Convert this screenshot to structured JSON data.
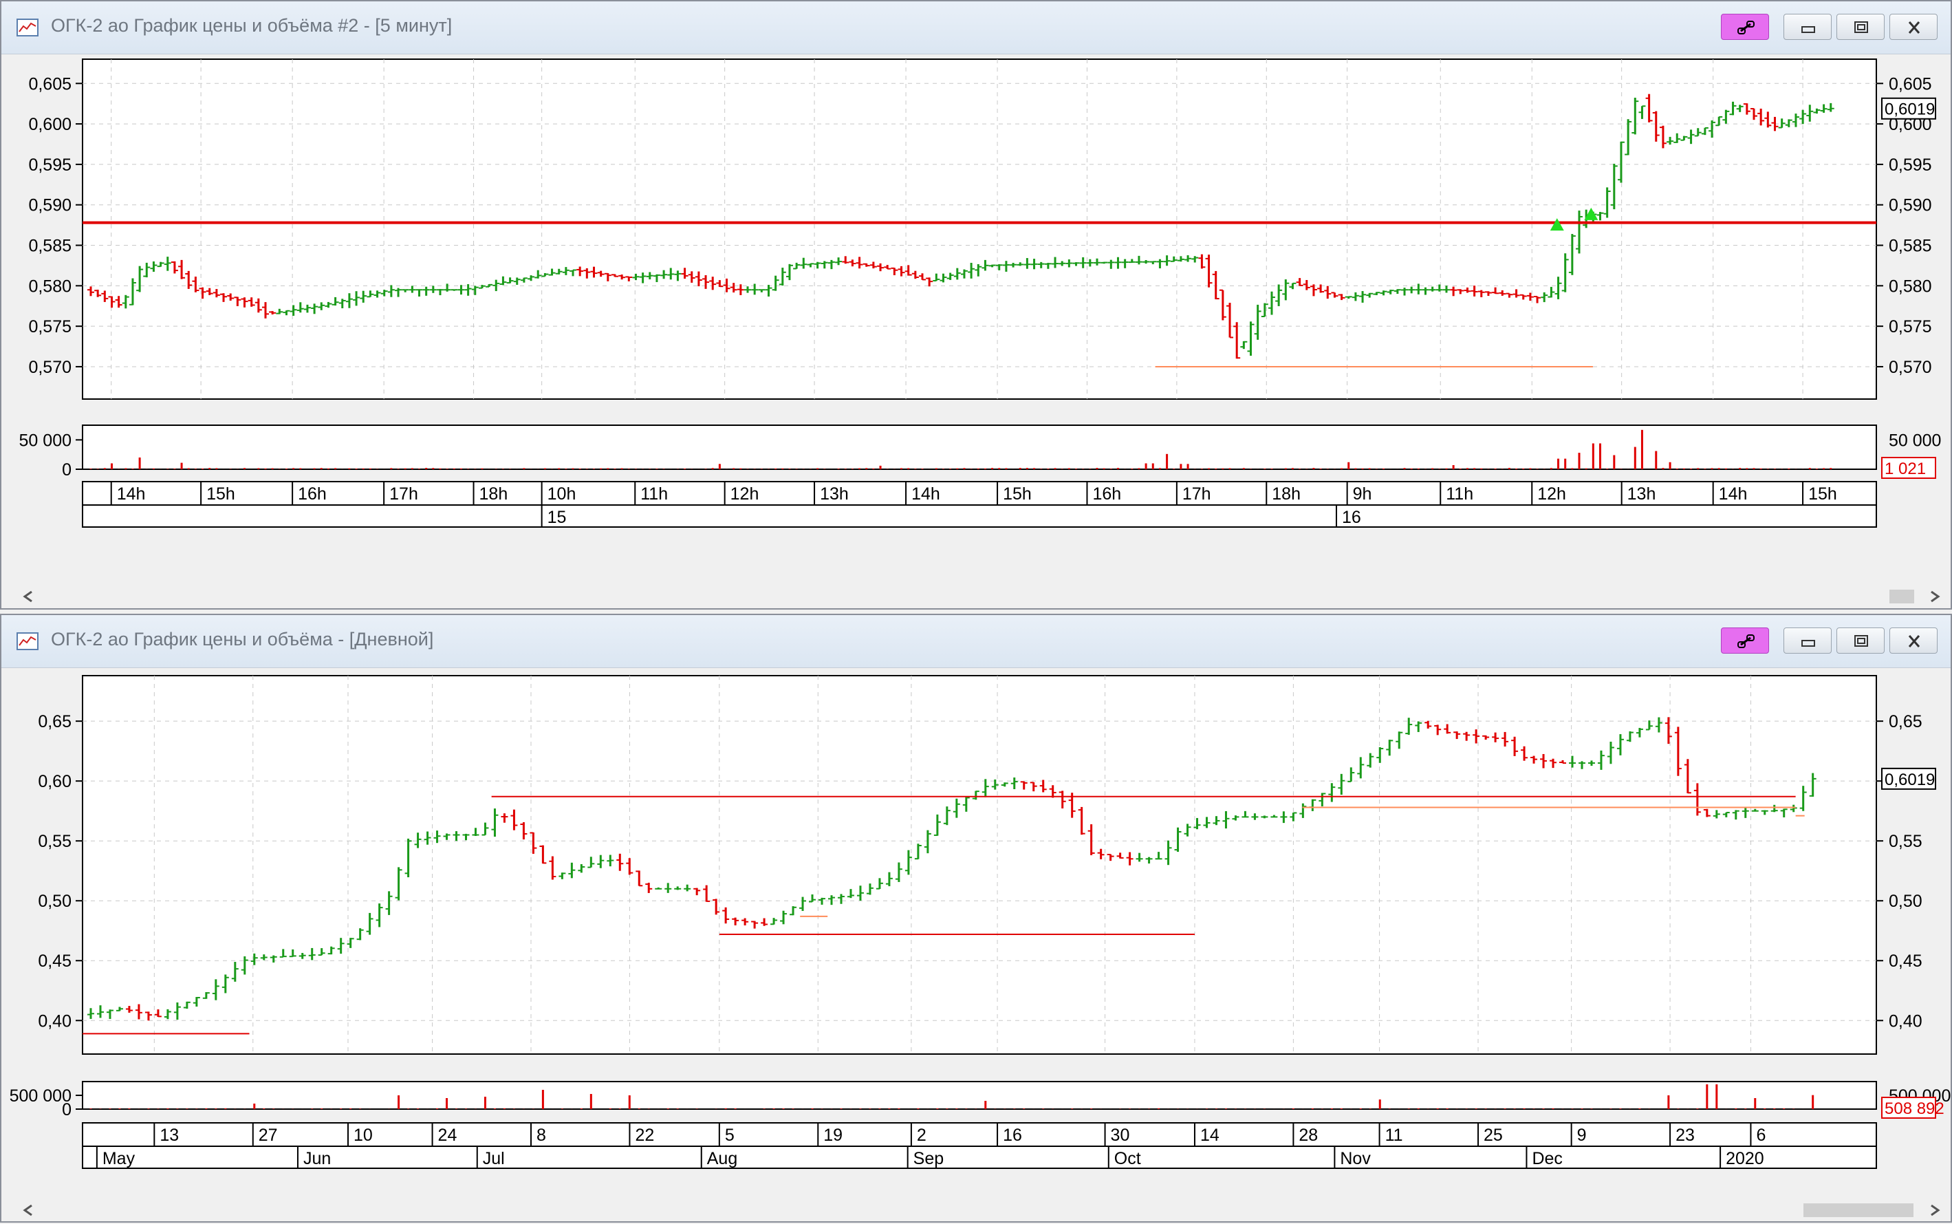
{
  "colors": {
    "up": "#1a9a1a",
    "down": "#e00000",
    "level": "#e00000",
    "level_thin": "#ff8c5a",
    "grid": "#c8c8c8",
    "volume": "#e00000",
    "arrow": "#22dd22",
    "price_box": "#000000",
    "volume_box": "#e00000"
  },
  "icons": [
    "chart-icon",
    "link-icon",
    "minimize-icon",
    "restore-icon",
    "close-icon",
    "scroll-left-icon",
    "scroll-right-icon"
  ],
  "windows": [
    {
      "title": "ОГК-2 ао График цены и объёма #2 - [5 минут]",
      "price_box_label": "0,6019",
      "volume_box_label": "1 021",
      "chart_data": {
        "type": "ohlc",
        "interval": "5 минут",
        "ylim": [
          0.566,
          0.608
        ],
        "yticks": [
          0.57,
          0.575,
          0.58,
          0.585,
          0.59,
          0.595,
          0.6,
          0.605
        ],
        "ytick_labels": [
          "0,570",
          "0,575",
          "0,580",
          "0,585",
          "0,590",
          "0,595",
          "0,600",
          "0,605"
        ],
        "last_price": 0.6019,
        "horizontal_levels": [
          {
            "price": 0.5878,
            "style": "thick",
            "from": 0,
            "to": 1
          },
          {
            "price": 0.57,
            "style": "thin",
            "from": 0.598,
            "to": 0.842
          }
        ],
        "price_path": [
          [
            0.0,
            0.5795
          ],
          [
            0.02,
            0.5775
          ],
          [
            0.03,
            0.582
          ],
          [
            0.045,
            0.583
          ],
          [
            0.06,
            0.5795
          ],
          [
            0.09,
            0.578
          ],
          [
            0.1,
            0.5765
          ],
          [
            0.13,
            0.5775
          ],
          [
            0.17,
            0.5795
          ],
          [
            0.21,
            0.5795
          ],
          [
            0.27,
            0.582
          ],
          [
            0.3,
            0.581
          ],
          [
            0.33,
            0.5815
          ],
          [
            0.36,
            0.5795
          ],
          [
            0.38,
            0.5795
          ],
          [
            0.392,
            0.5825
          ],
          [
            0.42,
            0.583
          ],
          [
            0.45,
            0.582
          ],
          [
            0.47,
            0.5805
          ],
          [
            0.5,
            0.5825
          ],
          [
            0.55,
            0.5828
          ],
          [
            0.6,
            0.583
          ],
          [
            0.62,
            0.5835
          ],
          [
            0.632,
            0.5775
          ],
          [
            0.642,
            0.571
          ],
          [
            0.652,
            0.5765
          ],
          [
            0.67,
            0.5805
          ],
          [
            0.7,
            0.5785
          ],
          [
            0.73,
            0.5795
          ],
          [
            0.76,
            0.5795
          ],
          [
            0.79,
            0.579
          ],
          [
            0.81,
            0.5785
          ],
          [
            0.82,
            0.5795
          ],
          [
            0.832,
            0.5885
          ],
          [
            0.845,
            0.589
          ],
          [
            0.855,
            0.597
          ],
          [
            0.865,
            0.6035
          ],
          [
            0.878,
            0.5975
          ],
          [
            0.9,
            0.599
          ],
          [
            0.92,
            0.6025
          ],
          [
            0.94,
            0.5995
          ],
          [
            0.96,
            0.6015
          ],
          [
            0.97,
            0.6019
          ]
        ],
        "volume_ylim": [
          0,
          75000
        ],
        "volume_yticks": [
          0,
          50000
        ],
        "volume_ytick_labels": [
          "0",
          "50 000"
        ],
        "volume_spikes": [
          [
            0.012,
            10000
          ],
          [
            0.027,
            20000
          ],
          [
            0.052,
            11000
          ],
          [
            0.35,
            9000
          ],
          [
            0.44,
            6000
          ],
          [
            0.59,
            10000
          ],
          [
            0.6,
            26000
          ],
          [
            0.61,
            9000
          ],
          [
            0.7,
            12000
          ],
          [
            0.76,
            7000
          ],
          [
            0.82,
            18000
          ],
          [
            0.83,
            28000
          ],
          [
            0.84,
            44000
          ],
          [
            0.85,
            24000
          ],
          [
            0.86,
            38000
          ],
          [
            0.865,
            67000
          ],
          [
            0.872,
            31000
          ],
          [
            0.88,
            12000
          ]
        ],
        "time_ticks": [
          {
            "pos": 0.016,
            "label": "14h"
          },
          {
            "pos": 0.066,
            "label": "15h"
          },
          {
            "pos": 0.117,
            "label": "16h"
          },
          {
            "pos": 0.168,
            "label": "17h"
          },
          {
            "pos": 0.218,
            "label": "18h"
          },
          {
            "pos": 0.256,
            "label": "10h"
          },
          {
            "pos": 0.308,
            "label": "11h"
          },
          {
            "pos": 0.358,
            "label": "12h"
          },
          {
            "pos": 0.408,
            "label": "13h"
          },
          {
            "pos": 0.459,
            "label": "14h"
          },
          {
            "pos": 0.51,
            "label": "15h"
          },
          {
            "pos": 0.56,
            "label": "16h"
          },
          {
            "pos": 0.61,
            "label": "17h"
          },
          {
            "pos": 0.66,
            "label": "18h"
          },
          {
            "pos": 0.705,
            "label": "9h"
          },
          {
            "pos": 0.757,
            "label": "11h"
          },
          {
            "pos": 0.808,
            "label": "12h"
          },
          {
            "pos": 0.858,
            "label": "13h"
          },
          {
            "pos": 0.909,
            "label": "14h"
          },
          {
            "pos": 0.959,
            "label": "15h"
          }
        ],
        "date_ticks": [
          {
            "pos": 0.256,
            "label": "15"
          },
          {
            "pos": 0.699,
            "label": "16"
          }
        ]
      }
    },
    {
      "title": "ОГК-2 ао График цены и объёма - [Дневной]",
      "price_box_label": "0,6019",
      "volume_box_label": "508 892",
      "chart_data": {
        "type": "ohlc",
        "interval": "Дневной",
        "ylim": [
          0.372,
          0.688
        ],
        "yticks": [
          0.4,
          0.45,
          0.5,
          0.55,
          0.6,
          0.65
        ],
        "ytick_labels": [
          "0,40",
          "0,45",
          "0,50",
          "0,55",
          "0,60",
          "0,65"
        ],
        "last_price": 0.6019,
        "horizontal_levels": [
          {
            "price": 0.389,
            "style": "thin",
            "from": 0.0,
            "to": 0.093
          },
          {
            "price": 0.587,
            "style": "thin",
            "from": 0.228,
            "to": 0.955
          },
          {
            "price": 0.472,
            "style": "thin",
            "from": 0.355,
            "to": 0.62
          },
          {
            "price": 0.487,
            "style": "thin-orange",
            "from": 0.4,
            "to": 0.4
          },
          {
            "price": 0.578,
            "style": "thin-orange",
            "from": 0.68,
            "to": 0.955
          },
          {
            "price": 0.571,
            "style": "thin-orange",
            "from": 0.955,
            "to": 0.96
          }
        ],
        "price_path": [
          [
            0.0,
            0.405
          ],
          [
            0.02,
            0.41
          ],
          [
            0.04,
            0.403
          ],
          [
            0.07,
            0.425
          ],
          [
            0.09,
            0.452
          ],
          [
            0.13,
            0.455
          ],
          [
            0.15,
            0.47
          ],
          [
            0.17,
            0.505
          ],
          [
            0.18,
            0.55
          ],
          [
            0.2,
            0.555
          ],
          [
            0.22,
            0.555
          ],
          [
            0.23,
            0.575
          ],
          [
            0.245,
            0.555
          ],
          [
            0.26,
            0.52
          ],
          [
            0.29,
            0.535
          ],
          [
            0.3,
            0.53
          ],
          [
            0.31,
            0.51
          ],
          [
            0.34,
            0.51
          ],
          [
            0.355,
            0.485
          ],
          [
            0.38,
            0.48
          ],
          [
            0.4,
            0.5
          ],
          [
            0.43,
            0.505
          ],
          [
            0.45,
            0.52
          ],
          [
            0.48,
            0.575
          ],
          [
            0.5,
            0.595
          ],
          [
            0.52,
            0.6
          ],
          [
            0.54,
            0.59
          ],
          [
            0.55,
            0.575
          ],
          [
            0.56,
            0.54
          ],
          [
            0.58,
            0.535
          ],
          [
            0.6,
            0.535
          ],
          [
            0.61,
            0.56
          ],
          [
            0.64,
            0.57
          ],
          [
            0.67,
            0.57
          ],
          [
            0.7,
            0.6
          ],
          [
            0.72,
            0.625
          ],
          [
            0.74,
            0.65
          ],
          [
            0.76,
            0.64
          ],
          [
            0.79,
            0.635
          ],
          [
            0.8,
            0.62
          ],
          [
            0.82,
            0.615
          ],
          [
            0.84,
            0.615
          ],
          [
            0.86,
            0.64
          ],
          [
            0.88,
            0.65
          ],
          [
            0.89,
            0.6
          ],
          [
            0.9,
            0.57
          ],
          [
            0.92,
            0.575
          ],
          [
            0.94,
            0.575
          ],
          [
            0.955,
            0.578
          ],
          [
            0.96,
            0.6019
          ]
        ],
        "volume_ylim": [
          0,
          1000000
        ],
        "volume_yticks": [
          0,
          500000
        ],
        "volume_ytick_labels": [
          "0",
          "500 000"
        ],
        "volume_spikes": [
          [
            0.09,
            200000
          ],
          [
            0.17,
            500000
          ],
          [
            0.2,
            400000
          ],
          [
            0.22,
            450000
          ],
          [
            0.25,
            700000
          ],
          [
            0.28,
            550000
          ],
          [
            0.3,
            500000
          ],
          [
            0.5,
            300000
          ],
          [
            0.72,
            350000
          ],
          [
            0.88,
            500000
          ],
          [
            0.9,
            900000
          ],
          [
            0.905,
            900000
          ],
          [
            0.93,
            400000
          ],
          [
            0.96,
            508892
          ]
        ],
        "time_ticks": [
          {
            "pos": 0.04,
            "label": "13"
          },
          {
            "pos": 0.095,
            "label": "27"
          },
          {
            "pos": 0.148,
            "label": "10"
          },
          {
            "pos": 0.195,
            "label": "24"
          },
          {
            "pos": 0.25,
            "label": "8"
          },
          {
            "pos": 0.305,
            "label": "22"
          },
          {
            "pos": 0.355,
            "label": "5"
          },
          {
            "pos": 0.41,
            "label": "19"
          },
          {
            "pos": 0.462,
            "label": "2"
          },
          {
            "pos": 0.51,
            "label": "16"
          },
          {
            "pos": 0.57,
            "label": "30"
          },
          {
            "pos": 0.62,
            "label": "14"
          },
          {
            "pos": 0.675,
            "label": "28"
          },
          {
            "pos": 0.723,
            "label": "11"
          },
          {
            "pos": 0.778,
            "label": "25"
          },
          {
            "pos": 0.83,
            "label": "9"
          },
          {
            "pos": 0.885,
            "label": "23"
          },
          {
            "pos": 0.93,
            "label": "6"
          }
        ],
        "date_ticks": [
          {
            "pos": 0.008,
            "label": "May"
          },
          {
            "pos": 0.12,
            "label": "Jun"
          },
          {
            "pos": 0.22,
            "label": "Jul"
          },
          {
            "pos": 0.345,
            "label": "Aug"
          },
          {
            "pos": 0.46,
            "label": "Sep"
          },
          {
            "pos": 0.572,
            "label": "Oct"
          },
          {
            "pos": 0.698,
            "label": "Nov"
          },
          {
            "pos": 0.805,
            "label": "Dec"
          },
          {
            "pos": 0.913,
            "label": "2020"
          }
        ]
      }
    }
  ]
}
